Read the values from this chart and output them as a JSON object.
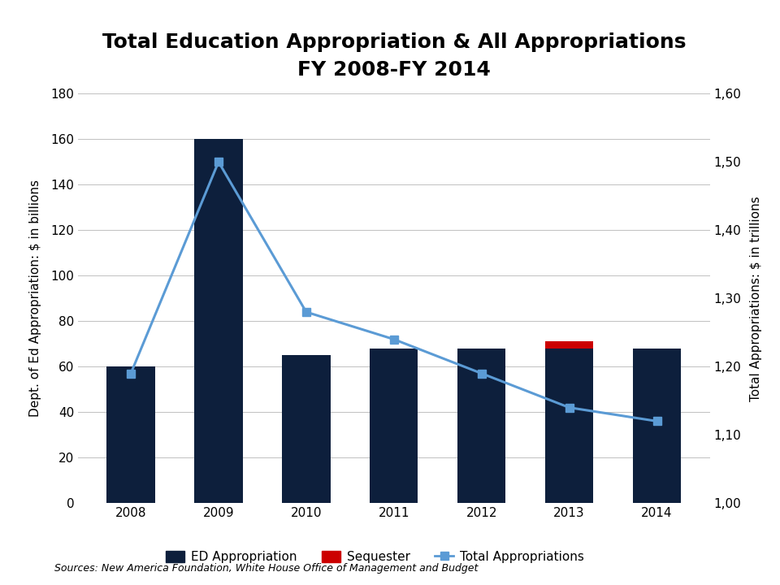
{
  "title_line1": "Total Education Appropriation & All Appropriations",
  "title_line2": "FY 2008-FY 2014",
  "years": [
    2008,
    2009,
    2010,
    2011,
    2012,
    2013,
    2014
  ],
  "ed_appropriation": [
    60,
    160,
    65,
    68,
    68,
    68,
    68
  ],
  "sequester": [
    0,
    0,
    0,
    0,
    0,
    3,
    0
  ],
  "total_appropriations": [
    1.19,
    1.5,
    1.28,
    1.24,
    1.19,
    1.14,
    1.12
  ],
  "bar_color": "#0d1f3c",
  "sequester_color": "#cc0000",
  "line_color": "#5b9bd5",
  "ylabel_left": "Dept. of Ed Appropriation: $ in billions",
  "ylabel_right": "Total Appropriations: $ in trillions",
  "ylim_left": [
    0,
    180
  ],
  "ylim_right": [
    1.0,
    1.6
  ],
  "yticks_left": [
    0,
    20,
    40,
    60,
    80,
    100,
    120,
    140,
    160,
    180
  ],
  "yticks_right": [
    1.0,
    1.1,
    1.2,
    1.3,
    1.4,
    1.5,
    1.6
  ],
  "ytick_labels_right": [
    "1,00",
    "1,10",
    "1,20",
    "1,30",
    "1,40",
    "1,50",
    "1,60"
  ],
  "legend_labels": [
    "ED Appropriation",
    "Sequester",
    "Total Appropriations"
  ],
  "source_text": "Sources: New America Foundation, White House Office of Management and Budget",
  "background_color": "#ffffff",
  "title_fontsize": 18,
  "axis_fontsize": 11,
  "tick_fontsize": 11,
  "legend_fontsize": 11
}
